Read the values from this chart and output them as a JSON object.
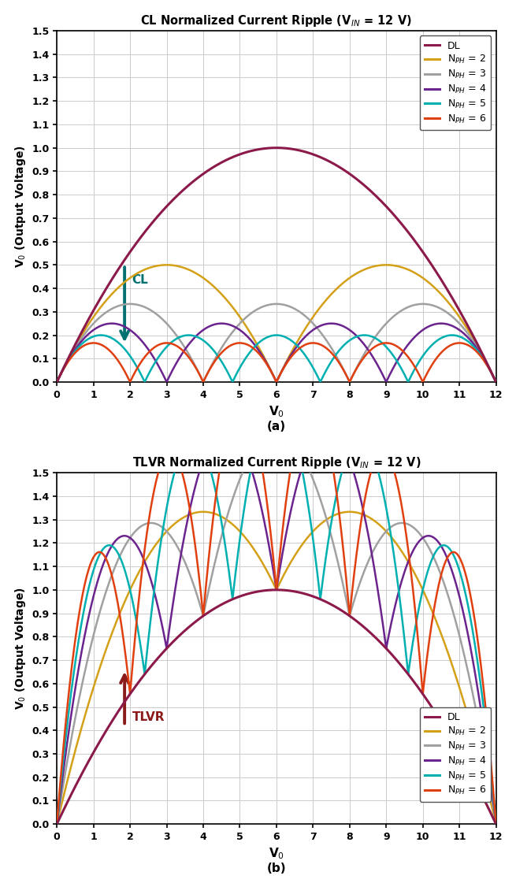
{
  "VIN": 12,
  "xlim": [
    0,
    12
  ],
  "ylim": [
    0,
    1.5
  ],
  "yticks": [
    0,
    0.1,
    0.2,
    0.3,
    0.4,
    0.5,
    0.6,
    0.7,
    0.8,
    0.9,
    1.0,
    1.1,
    1.2,
    1.3,
    1.4,
    1.5
  ],
  "xticks": [
    0,
    1,
    2,
    3,
    4,
    5,
    6,
    7,
    8,
    9,
    10,
    11,
    12
  ],
  "xlabel": "V$_0$",
  "ylabel": "V$_0$ (Output Voltage)",
  "title_a": "CL Normalized Current Ripple (V$_{IN}$ = 12 V)",
  "title_b": "TLVR Normalized Current Ripple (V$_{IN}$ = 12 V)",
  "label_a": "(a)",
  "label_b": "(b)",
  "colors": {
    "DL": "#8B1A4A",
    "N2": "#D4A017",
    "N3": "#A0A0A0",
    "N4": "#6B238E",
    "N5": "#00B0B0",
    "N6": "#E04010"
  },
  "arrow_cl_color": "#007070",
  "arrow_tlvr_color": "#8B1A1A",
  "figsize": [
    6.55,
    11.21
  ],
  "dpi": 100
}
